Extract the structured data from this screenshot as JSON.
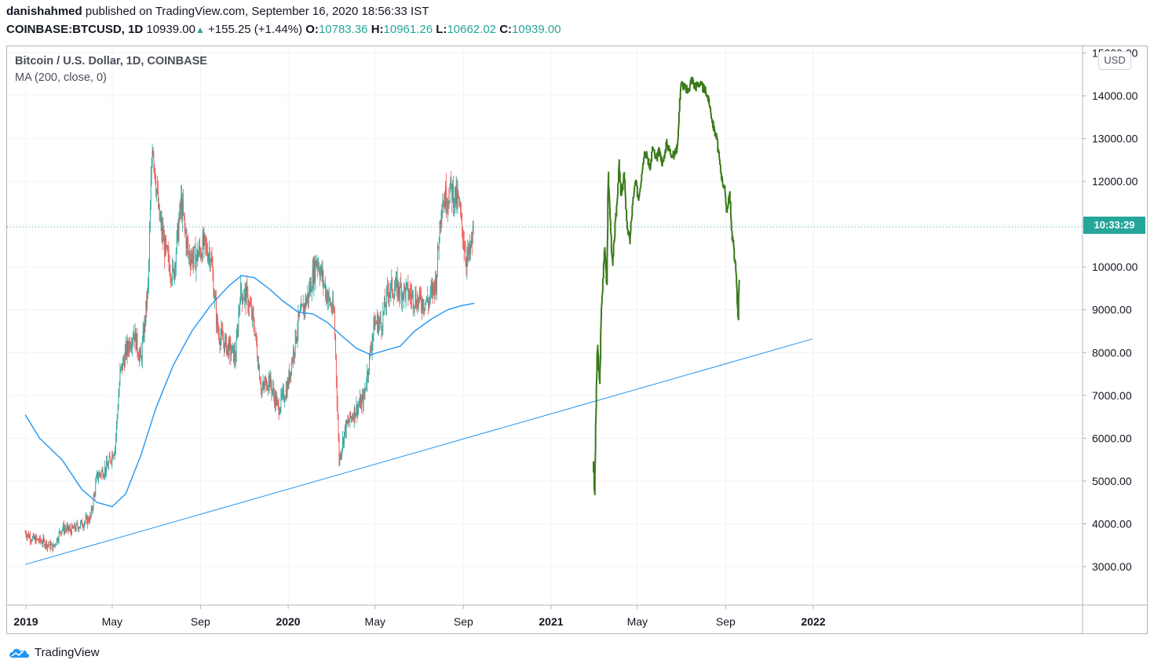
{
  "header": {
    "author": "danishahmed",
    "published_text": "published on TradingView.com, September 16, 2020 18:56:33 IST",
    "symbol": "COINBASE:BTCUSD, 1D",
    "last": "10939.00",
    "change": "+155.25 (+1.44%)",
    "o_label": "O:",
    "o_value": "10783.36",
    "h_label": "H:",
    "h_value": "10961.26",
    "l_label": "L:",
    "l_value": "10662.02",
    "c_label": "C:",
    "c_value": "10939.00"
  },
  "legend": {
    "title": "Bitcoin / U.S. Dollar, 1D, COINBASE",
    "indicator": "MA (200, close, 0)"
  },
  "price_axis": {
    "currency_badge": "USD",
    "current_time_label": "10:33:29",
    "ticks": [
      "3000.00",
      "4000.00",
      "5000.00",
      "6000.00",
      "7000.00",
      "8000.00",
      "9000.00",
      "10000.00",
      "11000.00",
      "12000.00",
      "13000.00",
      "14000.00",
      "15000.00"
    ]
  },
  "time_axis": {
    "labels": [
      {
        "text": "2019",
        "bold": true
      },
      {
        "text": "May",
        "bold": false
      },
      {
        "text": "Sep",
        "bold": false
      },
      {
        "text": "2020",
        "bold": true
      },
      {
        "text": "May",
        "bold": false
      },
      {
        "text": "Sep",
        "bold": false
      },
      {
        "text": "2021",
        "bold": true
      },
      {
        "text": "May",
        "bold": false
      },
      {
        "text": "Sep",
        "bold": false
      },
      {
        "text": "2022",
        "bold": true
      }
    ]
  },
  "brand": {
    "name": "TradingView",
    "icon": "tradingview-cloud-icon"
  },
  "colors": {
    "up": "#26a69a",
    "down": "#ef5350",
    "ma": "#2196f3",
    "projection": "#3a7a1a",
    "trendline": "#2196f3"
  },
  "chart_data": {
    "type": "line",
    "title": "Bitcoin / U.S. Dollar, 1D, COINBASE",
    "xlabel": "",
    "ylabel": "",
    "ylim": [
      2050,
      15250
    ],
    "x_axis_dates": [
      "2019-01-01",
      "2019-05-01",
      "2019-09-01",
      "2020-01-01",
      "2020-05-01",
      "2020-09-01",
      "2021-01-01",
      "2021-05-01",
      "2021-09-01",
      "2022-01-01"
    ],
    "current_price": 10939,
    "series": [
      {
        "name": "",
        "kind": "price (candles)",
        "points": [
          [
            "2018-12-31",
            3800
          ],
          [
            "2019-01-10",
            3650
          ],
          [
            "2019-01-25",
            3580
          ],
          [
            "2019-02-08",
            3450
          ],
          [
            "2019-02-20",
            3900
          ],
          [
            "2019-03-05",
            3850
          ],
          [
            "2019-03-20",
            4000
          ],
          [
            "2019-04-01",
            4150
          ],
          [
            "2019-04-10",
            5100
          ],
          [
            "2019-04-25",
            5350
          ],
          [
            "2019-05-05",
            5800
          ],
          [
            "2019-05-12",
            7500
          ],
          [
            "2019-05-20",
            8000
          ],
          [
            "2019-05-31",
            8500
          ],
          [
            "2019-06-10",
            7800
          ],
          [
            "2019-06-20",
            9500
          ],
          [
            "2019-06-26",
            13000
          ],
          [
            "2019-07-05",
            11200
          ],
          [
            "2019-07-15",
            10300
          ],
          [
            "2019-07-25",
            9800
          ],
          [
            "2019-08-05",
            11500
          ],
          [
            "2019-08-15",
            10300
          ],
          [
            "2019-08-25",
            10200
          ],
          [
            "2019-09-05",
            10500
          ],
          [
            "2019-09-15",
            10300
          ],
          [
            "2019-09-25",
            8500
          ],
          [
            "2019-10-05",
            8200
          ],
          [
            "2019-10-20",
            7900
          ],
          [
            "2019-10-26",
            9400
          ],
          [
            "2019-11-05",
            9300
          ],
          [
            "2019-11-15",
            8600
          ],
          [
            "2019-11-25",
            7100
          ],
          [
            "2019-12-05",
            7400
          ],
          [
            "2019-12-18",
            6700
          ],
          [
            "2019-12-31",
            7200
          ],
          [
            "2020-01-15",
            8700
          ],
          [
            "2020-01-30",
            9400
          ],
          [
            "2020-02-10",
            10200
          ],
          [
            "2020-02-25",
            9300
          ],
          [
            "2020-03-05",
            8900
          ],
          [
            "2020-03-12",
            5500
          ],
          [
            "2020-03-20",
            6200
          ],
          [
            "2020-04-01",
            6600
          ],
          [
            "2020-04-15",
            6900
          ],
          [
            "2020-04-30",
            8700
          ],
          [
            "2020-05-10",
            8700
          ],
          [
            "2020-05-20",
            9500
          ],
          [
            "2020-06-01",
            9500
          ],
          [
            "2020-06-15",
            9400
          ],
          [
            "2020-07-01",
            9200
          ],
          [
            "2020-07-15",
            9200
          ],
          [
            "2020-07-25",
            9700
          ],
          [
            "2020-08-01",
            11500
          ],
          [
            "2020-08-15",
            11800
          ],
          [
            "2020-08-25",
            11500
          ],
          [
            "2020-09-05",
            10200
          ],
          [
            "2020-09-10",
            10300
          ],
          [
            "2020-09-16",
            10939
          ]
        ]
      },
      {
        "name": "MA (200, close, 0)",
        "kind": "moving average",
        "points": [
          [
            "2018-12-31",
            6550
          ],
          [
            "2019-01-20",
            6000
          ],
          [
            "2019-02-20",
            5500
          ],
          [
            "2019-03-20",
            4800
          ],
          [
            "2019-04-10",
            4500
          ],
          [
            "2019-05-01",
            4400
          ],
          [
            "2019-05-20",
            4700
          ],
          [
            "2019-06-10",
            5600
          ],
          [
            "2019-07-01",
            6700
          ],
          [
            "2019-07-25",
            7700
          ],
          [
            "2019-08-20",
            8500
          ],
          [
            "2019-09-15",
            9100
          ],
          [
            "2019-10-10",
            9550
          ],
          [
            "2019-10-28",
            9800
          ],
          [
            "2019-11-15",
            9750
          ],
          [
            "2019-12-05",
            9500
          ],
          [
            "2019-12-25",
            9200
          ],
          [
            "2020-01-15",
            8950
          ],
          [
            "2020-02-05",
            8900
          ],
          [
            "2020-02-25",
            8700
          ],
          [
            "2020-03-15",
            8400
          ],
          [
            "2020-04-05",
            8100
          ],
          [
            "2020-04-25",
            7950
          ],
          [
            "2020-05-15",
            8050
          ],
          [
            "2020-06-05",
            8150
          ],
          [
            "2020-06-25",
            8500
          ],
          [
            "2020-07-20",
            8800
          ],
          [
            "2020-08-10",
            9000
          ],
          [
            "2020-08-30",
            9100
          ],
          [
            "2020-09-16",
            9150
          ]
        ]
      },
      {
        "name": "",
        "kind": "projection",
        "points": [
          [
            "2021-03-01",
            5500
          ],
          [
            "2021-03-03",
            4650
          ],
          [
            "2021-03-05",
            6800
          ],
          [
            "2021-03-07",
            8200
          ],
          [
            "2021-03-10",
            7200
          ],
          [
            "2021-03-12",
            8800
          ],
          [
            "2021-03-14",
            9500
          ],
          [
            "2021-03-17",
            10500
          ],
          [
            "2021-03-20",
            9600
          ],
          [
            "2021-03-22",
            12200
          ],
          [
            "2021-03-25",
            11000
          ],
          [
            "2021-03-28",
            10000
          ],
          [
            "2021-03-31",
            10800
          ],
          [
            "2021-04-03",
            11500
          ],
          [
            "2021-04-06",
            12400
          ],
          [
            "2021-04-09",
            11600
          ],
          [
            "2021-04-13",
            12200
          ],
          [
            "2021-04-17",
            11000
          ],
          [
            "2021-04-21",
            10600
          ],
          [
            "2021-04-25",
            11500
          ],
          [
            "2021-04-29",
            12000
          ],
          [
            "2021-05-03",
            11600
          ],
          [
            "2021-05-07",
            12100
          ],
          [
            "2021-05-11",
            12700
          ],
          [
            "2021-05-15",
            12600
          ],
          [
            "2021-05-19",
            12300
          ],
          [
            "2021-05-23",
            12800
          ],
          [
            "2021-05-27",
            12500
          ],
          [
            "2021-06-01",
            12700
          ],
          [
            "2021-06-06",
            12400
          ],
          [
            "2021-06-11",
            12900
          ],
          [
            "2021-06-16",
            12700
          ],
          [
            "2021-06-21",
            12600
          ],
          [
            "2021-06-26",
            12800
          ],
          [
            "2021-07-01",
            14300
          ],
          [
            "2021-07-06",
            14200
          ],
          [
            "2021-07-11",
            14100
          ],
          [
            "2021-07-16",
            14400
          ],
          [
            "2021-07-21",
            14200
          ],
          [
            "2021-07-26",
            14300
          ],
          [
            "2021-07-31",
            14200
          ],
          [
            "2021-08-05",
            14100
          ],
          [
            "2021-08-10",
            13800
          ],
          [
            "2021-08-15",
            13300
          ],
          [
            "2021-08-20",
            13000
          ],
          [
            "2021-08-25",
            12300
          ],
          [
            "2021-08-28",
            12000
          ],
          [
            "2021-08-31",
            11800
          ],
          [
            "2021-09-03",
            11300
          ],
          [
            "2021-09-07",
            11700
          ],
          [
            "2021-09-10",
            10800
          ],
          [
            "2021-09-13",
            10400
          ],
          [
            "2021-09-16",
            9800
          ],
          [
            "2021-09-19",
            8700
          ],
          [
            "2021-09-20",
            9700
          ]
        ]
      },
      {
        "name": "",
        "kind": "trend line",
        "points": [
          [
            "2018-12-31",
            3050
          ],
          [
            "2021-12-31",
            8320
          ]
        ]
      }
    ]
  }
}
